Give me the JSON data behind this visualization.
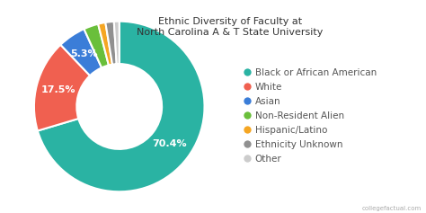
{
  "title": "Ethnic Diversity of Faculty at\nNorth Carolina A & T State University",
  "categories": [
    "Black or African American",
    "White",
    "Asian",
    "Non-Resident Alien",
    "Hispanic/Latino",
    "Ethnicity Unknown",
    "Other"
  ],
  "values": [
    70.4,
    17.5,
    5.3,
    2.8,
    1.4,
    1.6,
    1.0
  ],
  "colors": [
    "#2ab3a3",
    "#f06050",
    "#3b7dd8",
    "#6abf3b",
    "#f5a623",
    "#909090",
    "#cccccc"
  ],
  "pct_labels": [
    "70.4%",
    "17.5%",
    "5.3%",
    "",
    "",
    "",
    ""
  ],
  "background_color": "#ffffff",
  "title_fontsize": 8,
  "legend_fontsize": 7.5,
  "wedge_linewidth": 1.5,
  "wedge_edgecolor": "#ffffff",
  "label_fontsize": 8,
  "label_color": "white"
}
